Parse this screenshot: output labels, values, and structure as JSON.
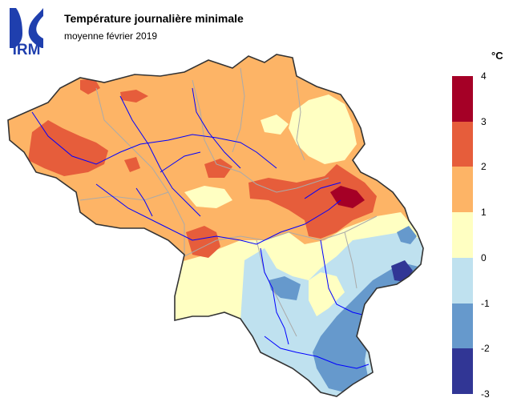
{
  "logo": {
    "text": "IRM",
    "color": "#1f3fae"
  },
  "title": "Température journalière minimale",
  "subtitle": "moyenne février 2019",
  "legend": {
    "unit": "°C",
    "ticks": [
      "4",
      "3",
      "2",
      "1",
      "0",
      "-1",
      "-2",
      "-3"
    ],
    "classes": [
      {
        "range": "3 to 4",
        "color": "#a50026"
      },
      {
        "range": "2 to 3",
        "color": "#e65d3b"
      },
      {
        "range": "1 to 2",
        "color": "#fdb466"
      },
      {
        "range": "0 to 1",
        "color": "#ffffc2"
      },
      {
        "range": "-1 to 0",
        "color": "#bfe1ef"
      },
      {
        "range": "-2 to -1",
        "color": "#6699cc"
      },
      {
        "range": "-3 to -2",
        "color": "#313695"
      }
    ]
  },
  "map": {
    "region": "Belgium",
    "variable": "daily minimum temperature",
    "rivers_color": "#0000ff",
    "borders_color": "#aaaaaa"
  }
}
